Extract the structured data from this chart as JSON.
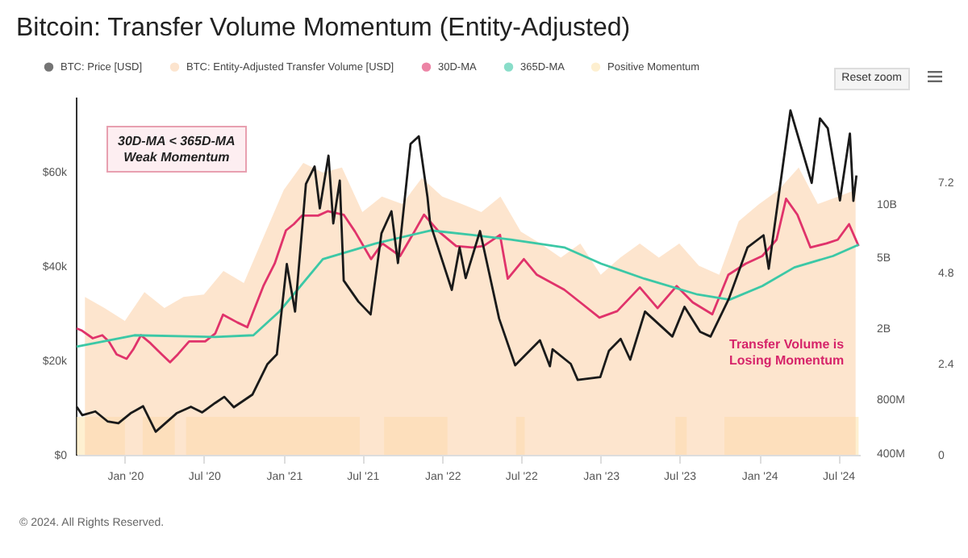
{
  "chart_data": {
    "type": "line",
    "title": "Bitcoin: Transfer Volume Momentum (Entity-Adjusted)",
    "annotations": [
      "30D-MA < 365D-MA\nWeak Momentum",
      "Transfer Volume is\nLosing Momentum",
      "Reset zoom",
      "© 2024. All Rights Reserved."
    ],
    "xlim": [
      "2019-09-10",
      "2024-08-20"
    ],
    "xticks": [
      {
        "value": "2020-01-01",
        "label": "Jan '20"
      },
      {
        "value": "2020-07-01",
        "label": "Jul '20"
      },
      {
        "value": "2021-01-01",
        "label": "Jan '21"
      },
      {
        "value": "2021-07-01",
        "label": "Jul '21"
      },
      {
        "value": "2022-01-01",
        "label": "Jan '22"
      },
      {
        "value": "2022-07-01",
        "label": "Jul '22"
      },
      {
        "value": "2023-01-01",
        "label": "Jan '23"
      },
      {
        "value": "2023-07-01",
        "label": "Jul '23"
      },
      {
        "value": "2024-01-01",
        "label": "Jan '24"
      },
      {
        "value": "2024-07-01",
        "label": "Jul '24"
      }
    ],
    "ylim": [
      0,
      76000
    ],
    "yticks": [
      {
        "value": 0,
        "label": "$0"
      },
      {
        "value": 20000,
        "label": "$20k"
      },
      {
        "value": 40000,
        "label": "$40k"
      },
      {
        "value": 60000,
        "label": "$60k"
      }
    ],
    "y2lim": [
      390000000,
      40000000000
    ],
    "y2ticks": [
      {
        "value": 400000000,
        "label": "400M"
      },
      {
        "value": 800000000,
        "label": "800M"
      },
      {
        "value": 2000000000,
        "label": "2B"
      },
      {
        "value": 5000000000,
        "label": "5B"
      },
      {
        "value": 10000000000,
        "label": "10B"
      }
    ],
    "y3lim": [
      0,
      9.45
    ],
    "y3ticks": [
      0,
      2.4,
      4.8,
      7.2
    ],
    "log": "y2",
    "grid": false,
    "legend": "top left",
    "marker": "none",
    "line_style": "solid",
    "series": [
      {
        "name": "BTC: Price [USD]",
        "color": "#1a1a1a",
        "axis": "y",
        "x": [
          "2019-09-12",
          "2019-09-25",
          "2019-10-25",
          "2019-11-22",
          "2019-12-17",
          "2020-01-14",
          "2020-02-12",
          "2020-03-12",
          "2020-04-29",
          "2020-06-01",
          "2020-06-27",
          "2020-07-27",
          "2020-08-17",
          "2020-09-08",
          "2020-10-21",
          "2020-11-24",
          "2020-12-16",
          "2021-01-08",
          "2021-01-27",
          "2021-02-21",
          "2021-03-13",
          "2021-03-25",
          "2021-04-14",
          "2021-04-25",
          "2021-05-10",
          "2021-05-19",
          "2021-06-22",
          "2021-07-20",
          "2021-08-14",
          "2021-09-06",
          "2021-09-21",
          "2021-10-20",
          "2021-11-08",
          "2021-11-28",
          "2021-12-04",
          "2022-01-23",
          "2022-02-10",
          "2022-02-24",
          "2022-03-29",
          "2022-05-12",
          "2022-06-18",
          "2022-08-14",
          "2022-09-06",
          "2022-09-12",
          "2022-10-24",
          "2022-11-09",
          "2022-12-31",
          "2023-01-20",
          "2023-02-16",
          "2023-03-10",
          "2023-04-13",
          "2023-06-15",
          "2023-07-13",
          "2023-08-18",
          "2023-09-11",
          "2023-10-23",
          "2023-12-05",
          "2024-01-11",
          "2024-01-23",
          "2024-03-13",
          "2024-05-01",
          "2024-05-20",
          "2024-06-07",
          "2024-07-05",
          "2024-07-28",
          "2024-08-05",
          "2024-08-12"
        ],
        "values": [
          10200,
          8400,
          9200,
          7100,
          6700,
          8800,
          10300,
          4900,
          8800,
          10200,
          9000,
          11000,
          12300,
          10100,
          12800,
          19200,
          21300,
          40500,
          30400,
          57500,
          61200,
          52300,
          63500,
          49100,
          58200,
          37000,
          32500,
          29800,
          47000,
          51700,
          40700,
          66000,
          67600,
          54700,
          49200,
          35000,
          44000,
          37500,
          47500,
          28900,
          19000,
          24300,
          18800,
          22400,
          19300,
          15900,
          16500,
          22100,
          24600,
          20200,
          30400,
          25100,
          31400,
          26100,
          25100,
          33100,
          44000,
          46600,
          39500,
          73100,
          57700,
          71400,
          69300,
          54000,
          68200,
          53900,
          59300
        ]
      },
      {
        "name": "BTC: Entity-Adjusted Transfer Volume [USD]",
        "type": "area",
        "color": "#fbd3ae",
        "axis": "y2",
        "x": [
          "2019-10-01",
          "2019-11-15",
          "2020-01-01",
          "2020-02-15",
          "2020-04-01",
          "2020-05-15",
          "2020-07-01",
          "2020-08-15",
          "2020-10-01",
          "2020-11-15",
          "2021-01-01",
          "2021-02-15",
          "2021-04-01",
          "2021-05-15",
          "2021-07-01",
          "2021-08-15",
          "2021-10-01",
          "2021-11-15",
          "2022-01-01",
          "2022-02-15",
          "2022-04-01",
          "2022-05-15",
          "2022-07-01",
          "2022-08-15",
          "2022-10-01",
          "2022-11-15",
          "2023-01-01",
          "2023-02-15",
          "2023-04-01",
          "2023-05-15",
          "2023-07-01",
          "2023-08-15",
          "2023-10-01",
          "2023-11-15",
          "2024-01-01",
          "2024-02-15",
          "2024-04-01",
          "2024-05-15",
          "2024-07-01",
          "2024-08-10"
        ],
        "values": [
          3000000000.0,
          2600000000.0,
          2200000000.0,
          3200000000.0,
          2600000000.0,
          3000000000.0,
          3100000000.0,
          4200000000.0,
          3600000000.0,
          6500000000.0,
          12000000000.0,
          17000000000.0,
          15000000000.0,
          16000000000.0,
          9000000000.0,
          11000000000.0,
          10000000000.0,
          14000000000.0,
          11000000000.0,
          10000000000.0,
          9000000000.0,
          11000000000.0,
          7000000000.0,
          6000000000.0,
          5000000000.0,
          6000000000.0,
          4000000000.0,
          5000000000.0,
          6000000000.0,
          5000000000.0,
          6000000000.0,
          4500000000.0,
          4000000000.0,
          8000000000.0,
          10000000000.0,
          12000000000.0,
          16000000000.0,
          10000000000.0,
          11000000000.0,
          12000000000.0
        ]
      },
      {
        "name": "30D-MA",
        "color": "#e0336b",
        "axis": "y2",
        "x": [
          "2019-09-12",
          "2019-09-23",
          "2019-10-19",
          "2019-11-10",
          "2019-11-25",
          "2019-12-13",
          "2020-01-05",
          "2020-01-20",
          "2020-02-07",
          "2020-02-29",
          "2020-03-26",
          "2020-04-14",
          "2020-05-02",
          "2020-05-28",
          "2020-07-04",
          "2020-07-27",
          "2020-08-14",
          "2020-09-16",
          "2020-10-09",
          "2020-10-23",
          "2020-11-15",
          "2020-12-11",
          "2021-01-06",
          "2021-01-24",
          "2021-02-12",
          "2021-03-21",
          "2021-04-12",
          "2021-05-19",
          "2021-06-14",
          "2021-07-21",
          "2021-08-16",
          "2021-09-26",
          "2021-10-29",
          "2021-11-20",
          "2021-12-24",
          "2022-02-02",
          "2022-03-11",
          "2022-04-06",
          "2022-05-14",
          "2022-06-01",
          "2022-07-08",
          "2022-08-07",
          "2022-10-09",
          "2022-11-15",
          "2022-12-29",
          "2023-02-08",
          "2023-04-01",
          "2023-05-12",
          "2023-06-25",
          "2023-08-01",
          "2023-09-15",
          "2023-10-22",
          "2023-12-01",
          "2024-01-08",
          "2024-02-10",
          "2024-03-03",
          "2024-03-29",
          "2024-04-28",
          "2024-06-04",
          "2024-06-30",
          "2024-07-26",
          "2024-08-17"
        ],
        "values": [
          2000000000.0,
          1950000000.0,
          1760000000.0,
          1830000000.0,
          1690000000.0,
          1430000000.0,
          1350000000.0,
          1520000000.0,
          1830000000.0,
          1650000000.0,
          1430000000.0,
          1290000000.0,
          1430000000.0,
          1690000000.0,
          1690000000.0,
          1870000000.0,
          2390000000.0,
          2160000000.0,
          2030000000.0,
          2490000000.0,
          3460000000.0,
          4620000000.0,
          7100000000.0,
          7700000000.0,
          8600000000.0,
          8600000000.0,
          9100000000.0,
          8700000000.0,
          7000000000.0,
          4900000000.0,
          6000000000.0,
          5100000000.0,
          7000000000.0,
          8700000000.0,
          7000000000.0,
          5800000000.0,
          5700000000.0,
          5800000000.0,
          6700000000.0,
          3800000000.0,
          4900000000.0,
          4000000000.0,
          3300000000.0,
          2800000000.0,
          2300000000.0,
          2500000000.0,
          3400000000.0,
          2600000000.0,
          3460000000.0,
          2800000000.0,
          2400000000.0,
          4000000000.0,
          4620000000.0,
          5100000000.0,
          6300000000.0,
          10700000000.0,
          8700000000.0,
          5700000000.0,
          6000000000.0,
          6300000000.0,
          7700000000.0,
          5800000000.0
        ]
      },
      {
        "name": "365D-MA",
        "color": "#3cc8a6",
        "axis": "y2",
        "x": [
          "2019-09-12",
          "2020-01-23",
          "2020-07-27",
          "2020-10-23",
          "2020-12-22",
          "2021-04-01",
          "2021-08-01",
          "2021-12-05",
          "2022-03-11",
          "2022-06-08",
          "2022-10-09",
          "2023-01-02",
          "2023-04-12",
          "2023-08-12",
          "2023-10-25",
          "2024-01-08",
          "2024-03-22",
          "2024-06-19",
          "2024-08-17"
        ],
        "values": [
          1580000000.0,
          1830000000.0,
          1790000000.0,
          1830000000.0,
          2490000000.0,
          4900000000.0,
          6000000000.0,
          7100000000.0,
          6700000000.0,
          6300000000.0,
          5700000000.0,
          4620000000.0,
          3800000000.0,
          3100000000.0,
          2900000000.0,
          3460000000.0,
          4400000000.0,
          5100000000.0,
          5900000000.0
        ]
      },
      {
        "name": "Positive Momentum",
        "type": "area",
        "color": "#fde6b2",
        "axis": "y3",
        "x": [
          "2019-09-12",
          "2020-01-01",
          "2020-01-01",
          "2020-02-11",
          "2020-02-11",
          "2020-04-25",
          "2020-04-25",
          "2020-05-21",
          "2020-05-21",
          "2021-06-25",
          "2021-06-25",
          "2021-08-20",
          "2021-08-20",
          "2022-01-13",
          "2022-01-13",
          "2022-06-20",
          "2022-06-20",
          "2022-07-10",
          "2022-07-10",
          "2023-06-22",
          "2023-06-22",
          "2023-07-18",
          "2023-07-18",
          "2023-10-13",
          "2023-10-13",
          "2024-08-17"
        ],
        "values": [
          1,
          1,
          0,
          0,
          1,
          1,
          0,
          0,
          1,
          1,
          0,
          0,
          1,
          1,
          0,
          0,
          1,
          1,
          0,
          0,
          1,
          1,
          0,
          0,
          1,
          1
        ]
      }
    ]
  }
}
